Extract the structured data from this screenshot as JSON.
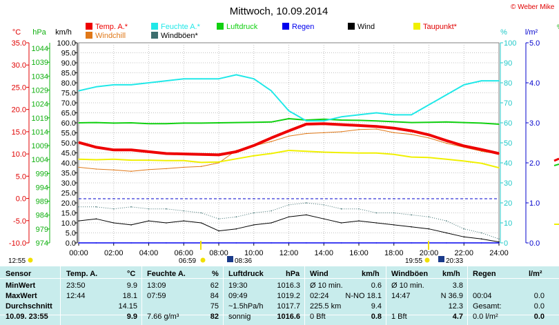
{
  "header": {
    "date_title": "Mittwoch, 10.09.2014",
    "credit": "© Weber Mike"
  },
  "axes": {
    "temp": {
      "unit": "°C",
      "ticks": [
        "35.0",
        "30.0",
        "25.0",
        "20.0",
        "15.0",
        "10.0",
        "5.0",
        "0.0",
        "-5.0",
        "-10.0"
      ],
      "range": [
        -10,
        35
      ]
    },
    "press": {
      "unit": "hPa",
      "ticks": [
        "1044",
        "1039",
        "1034",
        "1029",
        "1024",
        "1019",
        "1014",
        "1009",
        "1004",
        "999",
        "994",
        "989",
        "984",
        "979",
        "974"
      ],
      "range": [
        974,
        1046
      ]
    },
    "wind": {
      "unit": "km/h",
      "ticks": [
        "100.0",
        "95.0",
        "90.0",
        "85.0",
        "80.0",
        "75.0",
        "70.0",
        "65.0",
        "60.0",
        "55.0",
        "50.0",
        "45.0",
        "40.0",
        "35.0",
        "30.0",
        "25.0",
        "20.0",
        "15.0",
        "10.0",
        "5.0",
        "0.0"
      ],
      "range": [
        0,
        100
      ]
    },
    "hum": {
      "unit": "%",
      "ticks": [
        "100",
        "90",
        "80",
        "70",
        "60",
        "50",
        "40",
        "30",
        "20",
        "10",
        "0"
      ],
      "range": [
        0,
        100
      ]
    },
    "rain": {
      "unit": "l/m²",
      "ticks": [
        "5.0",
        "4.0",
        "3.0",
        "2.0",
        "1.0",
        "0.0"
      ],
      "range": [
        0,
        5
      ]
    },
    "time_ticks": [
      "00:00",
      "02:00",
      "04:00",
      "06:00",
      "08:00",
      "10:00",
      "12:00",
      "14:00",
      "16:00",
      "18:00",
      "20:00",
      "22:00",
      "24:00"
    ]
  },
  "sun": {
    "moonrise": "12:55",
    "sunrise": "06:59",
    "moonset_label": "08:36",
    "sunset": "19:55",
    "moonrise_label": "20:33"
  },
  "chart_data": {
    "type": "line",
    "title": "Mittwoch, 10.09.2014",
    "xlabel": "",
    "ylabel": "",
    "x": [
      0,
      1,
      2,
      3,
      4,
      5,
      6,
      7,
      8,
      9,
      10,
      11,
      12,
      13,
      14,
      15,
      16,
      17,
      18,
      19,
      20,
      21,
      22,
      23,
      24
    ],
    "series": [
      {
        "name": "Temp. A.*",
        "axis": "°C",
        "color": "#ee0000",
        "values": [
          12.6,
          11.5,
          10.9,
          10.9,
          10.5,
          10.1,
          10.0,
          9.9,
          9.8,
          10.5,
          11.9,
          13.6,
          15.2,
          16.7,
          16.8,
          16.6,
          16.4,
          16.2,
          15.8,
          15.2,
          14.3,
          13.0,
          11.8,
          11.0,
          10.1
        ]
      },
      {
        "name": "Windchill",
        "axis": "°C",
        "color": "#e07818",
        "values": [
          7.0,
          6.6,
          6.4,
          6.1,
          6.5,
          6.7,
          7.0,
          7.2,
          8.0,
          10.8,
          11.8,
          12.8,
          14.0,
          14.6,
          14.8,
          15.0,
          15.5,
          15.6,
          14.8,
          14.4,
          13.6,
          12.4,
          11.5,
          10.6,
          10.0
        ]
      },
      {
        "name": "Feuchte A.*",
        "axis": "%",
        "color": "#20e8e8",
        "values": [
          76,
          78,
          79,
          79,
          80,
          81,
          82,
          82,
          82,
          84,
          82,
          76,
          66,
          61,
          61,
          63,
          64,
          65,
          64,
          64,
          69,
          74,
          79,
          81,
          81
        ]
      },
      {
        "name": "Luftdruck",
        "axis": "hPa",
        "color": "#10d010",
        "values": [
          1017.2,
          1017.3,
          1017.1,
          1017.2,
          1016.9,
          1016.9,
          1017.1,
          1017.1,
          1017.2,
          1017.3,
          1017.4,
          1017.5,
          1018.7,
          1018.2,
          1018.5,
          1018.2,
          1018.1,
          1017.9,
          1017.6,
          1017.3,
          1017.4,
          1017.5,
          1017.3,
          1017.1,
          1016.7
        ]
      },
      {
        "name": "Regen",
        "axis": "l/m²",
        "color": "#0000ee",
        "values": [
          0,
          0,
          0,
          0,
          0,
          0,
          0,
          0,
          0,
          0,
          0,
          0,
          0,
          0,
          0,
          0,
          0,
          0,
          0,
          0,
          0,
          0,
          0,
          0,
          0
        ]
      },
      {
        "name": "Wind",
        "axis": "km/h",
        "color": "#000000",
        "values": [
          11,
          12,
          10,
          9,
          11,
          10,
          11,
          10,
          6,
          7,
          9,
          10,
          13,
          14,
          12,
          10,
          11,
          10,
          9,
          8,
          7,
          5,
          3,
          2,
          0.5
        ]
      },
      {
        "name": "Windböen*",
        "axis": "km/h",
        "color": "#3c6e6e",
        "values": [
          18,
          18,
          17,
          18,
          17,
          17,
          16,
          15,
          12,
          13,
          15,
          16,
          19,
          20,
          19,
          17,
          17,
          15,
          15,
          14,
          13,
          11,
          7,
          5,
          2
        ]
      },
      {
        "name": "Taupunkt*",
        "axis": "°C",
        "color": "#f0f000",
        "values": [
          8.8,
          8.7,
          8.8,
          8.6,
          8.6,
          8.5,
          8.5,
          8.1,
          8.2,
          8.9,
          9.6,
          10.1,
          10.8,
          10.6,
          10.4,
          10.3,
          10.2,
          10.2,
          9.9,
          9.3,
          9.2,
          8.8,
          8.4,
          7.9,
          6.9
        ]
      }
    ],
    "ylim": [
      -10,
      35
    ],
    "grid": true
  },
  "summary": {
    "headers": [
      "Sensor",
      "Temp. A.",
      "°C",
      "Feuchte A.",
      "%",
      "Luftdruck",
      "hPa",
      "Wind",
      "km/h",
      "Windböen",
      "km/h",
      "Regen",
      "l/m²"
    ],
    "rows": [
      {
        "label": "MinWert",
        "cells": [
          "23:50",
          "9.9",
          "13:09",
          "62",
          "19:30",
          "1016.3",
          "Ø 10 min.",
          "0.6",
          "Ø 10 min.",
          "3.8",
          "",
          ""
        ]
      },
      {
        "label": "MaxWert",
        "cells": [
          "12:44",
          "18.1",
          "07:59",
          "84",
          "09:49",
          "1019.2",
          "02:24",
          "N-NO 18.1",
          "14:47",
          "N 36.9",
          "00:04",
          "0.0"
        ]
      },
      {
        "label": "Durchschnitt",
        "cells": [
          "",
          "14.15",
          "",
          "75",
          "~1.5hPa/h",
          "1017.7",
          "225.5 km",
          "9.4",
          "",
          "12.3",
          "Gesamt:",
          "0.0"
        ]
      },
      {
        "label": "10.09. 23:55",
        "cells": [
          "",
          "9.9",
          "7.66 g/m³",
          "82",
          "sonnig",
          "1016.6",
          "0 Bft",
          "0.8",
          "1 Bft",
          "4.7",
          "0.0 l/m²",
          "0.0"
        ]
      }
    ]
  }
}
